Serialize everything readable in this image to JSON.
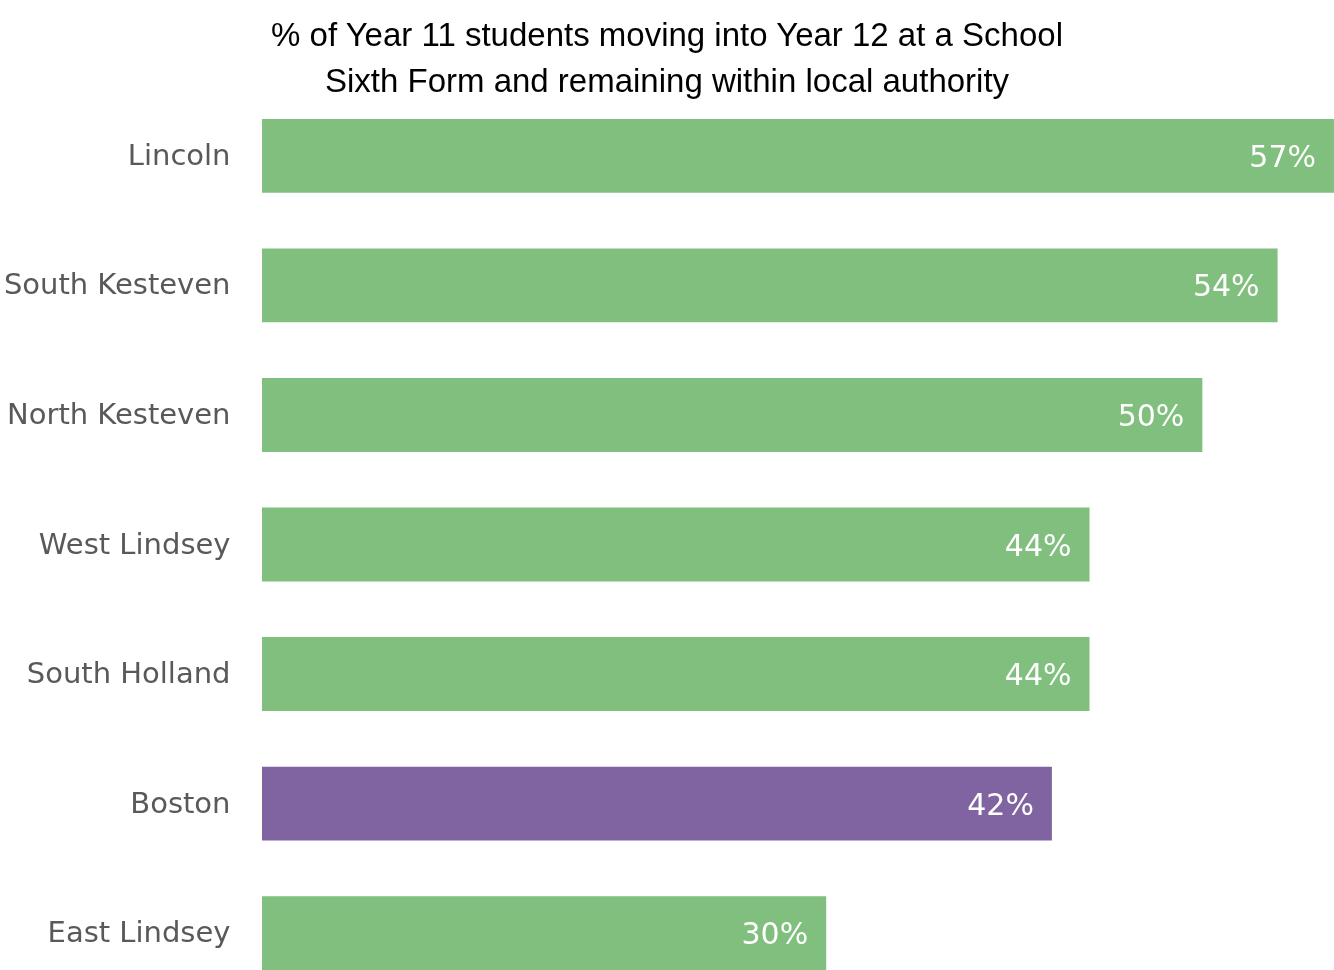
{
  "chart_data": {
    "type": "bar",
    "orientation": "horizontal",
    "title": "% of Year 11 students moving into Year 12 at a School Sixth Form and remaining within local authority",
    "categories": [
      "Lincoln",
      "South Kesteven",
      "North Kesteven",
      "West Lindsey",
      "South Holland",
      "Boston",
      "East Lindsey"
    ],
    "values": [
      57,
      54,
      50,
      44,
      44,
      42,
      30
    ],
    "colors": [
      "#80bf7e",
      "#80bf7e",
      "#80bf7e",
      "#80bf7e",
      "#80bf7e",
      "#8064a2",
      "#80bf7e"
    ],
    "value_labels": [
      "57%",
      "54%",
      "50%",
      "44%",
      "44%",
      "42%",
      "30%"
    ]
  }
}
